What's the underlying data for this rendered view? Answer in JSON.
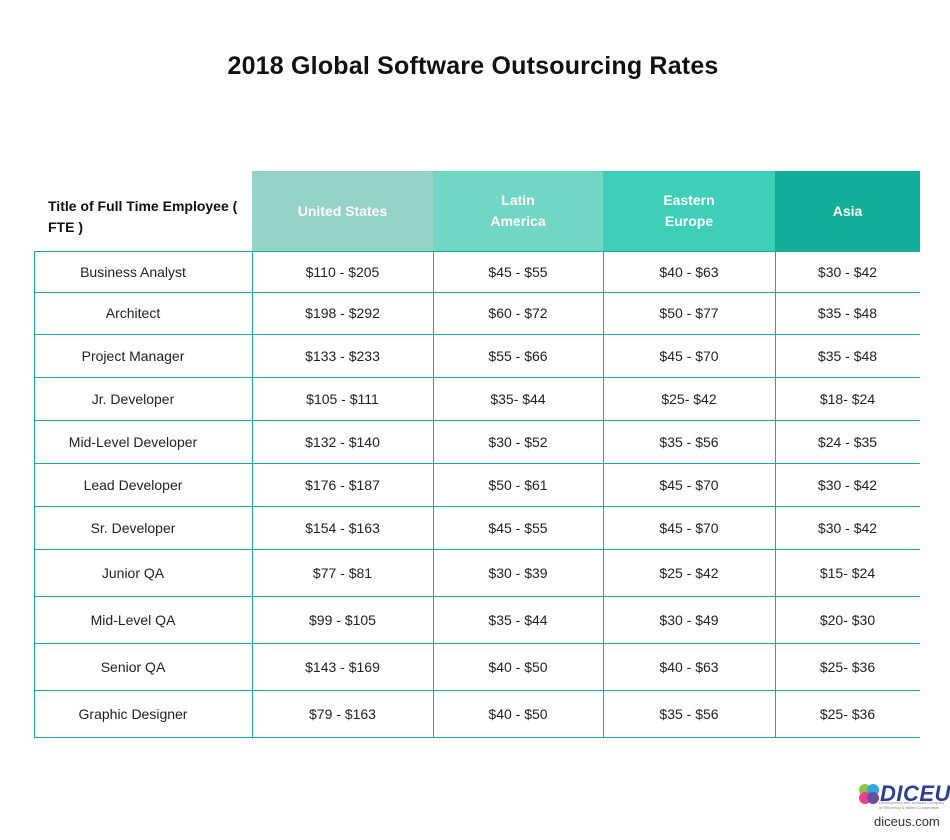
{
  "chart_data": {
    "type": "table",
    "title": "2018 Global Software Outsourcing Rates",
    "row_header_label": "Title of Full Time Employee ( FTE )",
    "columns": [
      {
        "label": "United States",
        "color": "#96d3c7"
      },
      {
        "label": "Latin America",
        "color": "#71d6c3"
      },
      {
        "label": "Eastern Europe",
        "color": "#3ecfb8"
      },
      {
        "label": "Asia",
        "color": "#12ae99"
      }
    ],
    "rows": [
      {
        "role": "Business Analyst",
        "values": [
          "$110 - $205",
          "$45 - $55",
          "$40 - $63",
          "$30 - $42"
        ]
      },
      {
        "role": "Architect",
        "values": [
          "$198 - $292",
          "$60 - $72",
          "$50 - $77",
          "$35 - $48"
        ]
      },
      {
        "role": "Project Manager",
        "values": [
          "$133 - $233",
          "$55 - $66",
          "$45 - $70",
          "$35 - $48"
        ]
      },
      {
        "role": "Jr. Developer",
        "values": [
          "$105 - $111",
          "$35- $44",
          "$25- $42",
          "$18- $24"
        ]
      },
      {
        "role": "Mid-Level Developer",
        "values": [
          "$132 - $140",
          "$30 - $52",
          "$35 - $56",
          "$24 - $35"
        ]
      },
      {
        "role": "Lead Developer",
        "values": [
          "$176 - $187",
          "$50 - $61",
          "$45 - $70",
          "$30 - $42"
        ]
      },
      {
        "role": "Sr. Developer",
        "values": [
          "$154 - $163",
          "$45 - $55",
          "$45 - $70",
          "$30 - $42"
        ]
      },
      {
        "role": "Junior QA",
        "values": [
          "$77 - $81",
          "$30 - $39",
          "$25 - $42",
          "$15- $24"
        ]
      },
      {
        "role": "Mid-Level QA",
        "values": [
          "$99 - $105",
          "$35 - $44",
          "$30 - $49",
          "$20- $30"
        ]
      },
      {
        "role": "Senior QA",
        "values": [
          "$143 - $169",
          "$40 - $50",
          "$40 - $63",
          "$25- $36"
        ]
      },
      {
        "role": "Graphic Designer",
        "values": [
          "$79 - $163",
          "$40 - $50",
          "$35 - $56",
          "$25- $36"
        ]
      }
    ]
  },
  "branding": {
    "logo_text": "DICEUS",
    "tagline": "Development and services Company of Efficiency & skilled Cooperation",
    "url": "diceus.com"
  }
}
